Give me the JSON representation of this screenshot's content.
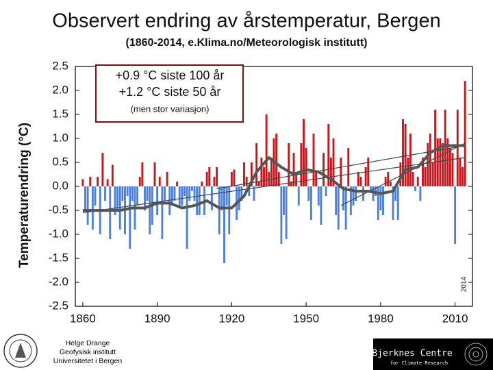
{
  "chart_data": {
    "type": "bar",
    "title": "Observert endring av årstemperatur, Bergen",
    "subtitle": "(1860-2014, e.Klima.no/Meteorologisk institutt)",
    "y_label": "Temperaturendring (°C)",
    "annotation": [
      "+0.9 °C siste 100 år",
      "+1.2 °C siste 50 år",
      "(men stor variasjon)"
    ],
    "end_label": "2014",
    "positive_color": "#c8161d",
    "negative_color": "#4d7fdc",
    "x": [
      1860,
      1861,
      1862,
      1863,
      1864,
      1865,
      1866,
      1867,
      1868,
      1869,
      1870,
      1871,
      1872,
      1873,
      1874,
      1875,
      1876,
      1877,
      1878,
      1879,
      1880,
      1881,
      1882,
      1883,
      1884,
      1885,
      1886,
      1887,
      1888,
      1889,
      1890,
      1891,
      1892,
      1893,
      1894,
      1895,
      1896,
      1897,
      1898,
      1899,
      1900,
      1901,
      1902,
      1903,
      1904,
      1905,
      1906,
      1907,
      1908,
      1909,
      1910,
      1911,
      1912,
      1913,
      1914,
      1915,
      1916,
      1917,
      1918,
      1919,
      1920,
      1921,
      1922,
      1923,
      1924,
      1925,
      1926,
      1927,
      1928,
      1929,
      1930,
      1931,
      1932,
      1933,
      1934,
      1935,
      1936,
      1937,
      1938,
      1939,
      1940,
      1941,
      1942,
      1943,
      1944,
      1945,
      1946,
      1947,
      1948,
      1949,
      1950,
      1951,
      1952,
      1953,
      1954,
      1955,
      1956,
      1957,
      1958,
      1959,
      1960,
      1961,
      1962,
      1963,
      1964,
      1965,
      1966,
      1967,
      1968,
      1969,
      1970,
      1971,
      1972,
      1973,
      1974,
      1975,
      1976,
      1977,
      1978,
      1979,
      1980,
      1981,
      1982,
      1983,
      1984,
      1985,
      1986,
      1987,
      1988,
      1989,
      1990,
      1991,
      1992,
      1993,
      1994,
      1995,
      1996,
      1997,
      1998,
      1999,
      2000,
      2001,
      2002,
      2003,
      2004,
      2005,
      2006,
      2007,
      2008,
      2009,
      2010,
      2011,
      2012,
      2013,
      2014
    ],
    "values": [
      0.15,
      -0.5,
      -0.8,
      0.2,
      -0.9,
      -0.4,
      0.2,
      -1.0,
      0.7,
      -0.3,
      0.15,
      -1.1,
      0.45,
      -0.6,
      -0.5,
      -0.9,
      -0.3,
      -1.0,
      -0.2,
      -1.3,
      -0.3,
      -0.9,
      -0.4,
      0.2,
      0.5,
      -0.5,
      -0.3,
      -1.0,
      -0.8,
      0.5,
      -0.6,
      0.2,
      -1.1,
      -0.3,
      0.3,
      -0.6,
      -0.4,
      -0.3,
      0.1,
      -0.4,
      -0.4,
      -0.2,
      -1.3,
      -0.3,
      -0.1,
      -0.3,
      -0.6,
      -0.6,
      0.1,
      -0.6,
      0.3,
      0.4,
      -0.5,
      0.2,
      0.4,
      -1.0,
      -0.5,
      -1.6,
      -0.4,
      -1.0,
      0.3,
      0.35,
      -0.7,
      -0.5,
      -0.3,
      0.5,
      0.2,
      -0.2,
      0.5,
      -0.3,
      0.9,
      0.1,
      0.6,
      0.4,
      1.5,
      0.3,
      0.6,
      1.0,
      1.1,
      0.3,
      -1.2,
      -0.6,
      -1.1,
      0.9,
      0.1,
      0.7,
      0.3,
      -0.4,
      0.9,
      1.4,
      0.8,
      -0.3,
      -0.7,
      1.1,
      0.3,
      -0.4,
      -0.8,
      0.7,
      -0.2,
      1.3,
      0.6,
      1.0,
      -0.6,
      -0.9,
      0.6,
      -0.5,
      -0.9,
      0.8,
      -0.6,
      -0.4,
      -0.3,
      0.3,
      0.2,
      -0.3,
      0.4,
      0.6,
      -0.1,
      -0.3,
      -0.2,
      -0.7,
      -0.5,
      -0.6,
      0.2,
      0.3,
      0.1,
      -0.7,
      -0.3,
      -0.7,
      0.5,
      1.4,
      1.3,
      0.6,
      1.1,
      0.3,
      -0.1,
      0.2,
      -0.3,
      0.6,
      0.4,
      0.9,
      1.1,
      0.5,
      1.6,
      1.0,
      1.0,
      0.9,
      1.6,
      1.0,
      0.8,
      0.7,
      -1.2,
      1.6,
      0.6,
      0.4,
      2.2
    ],
    "smoothed": {
      "color": "#555555",
      "x": [
        1860,
        1865,
        1870,
        1875,
        1880,
        1885,
        1890,
        1895,
        1900,
        1905,
        1910,
        1915,
        1920,
        1925,
        1930,
        1935,
        1940,
        1945,
        1950,
        1955,
        1960,
        1965,
        1970,
        1975,
        1980,
        1985,
        1990,
        1995,
        2000,
        2005,
        2010,
        2014
      ],
      "values": [
        -0.5,
        -0.5,
        -0.5,
        -0.5,
        -0.45,
        -0.45,
        -0.35,
        -0.35,
        -0.45,
        -0.4,
        -0.3,
        -0.45,
        -0.45,
        -0.2,
        0.3,
        0.6,
        0.4,
        0.25,
        0.35,
        0.3,
        0.15,
        -0.05,
        -0.1,
        -0.1,
        -0.15,
        -0.1,
        0.35,
        0.4,
        0.7,
        0.85,
        0.85,
        0.85
      ]
    },
    "trend_lines": [
      {
        "x": [
          1860,
          2014
        ],
        "values": [
          -0.55,
          0.6
        ]
      },
      {
        "x": [
          1914,
          2014
        ],
        "values": [
          -0.05,
          0.85
        ]
      },
      {
        "x": [
          1964,
          2014
        ],
        "values": [
          -0.4,
          0.9
        ]
      }
    ],
    "xlim": [
      1857,
      2017
    ],
    "xticks": [
      1860,
      1890,
      1920,
      1950,
      1980,
      2010
    ],
    "ylim": [
      -2.5,
      2.5
    ],
    "yticks": [
      2.5,
      {
        "value": 2,
        "label": "2.0"
      },
      1.5,
      {
        "value": 1,
        "label": "1.0"
      },
      0.5,
      {
        "value": 0,
        "label": "0.0"
      },
      -0.5,
      {
        "value": -1,
        "label": "-1.0"
      },
      -1.5,
      {
        "value": -2,
        "label": "-2.0"
      },
      -2.5
    ]
  },
  "footer": {
    "author": [
      "Helge Drange",
      "Geofysisk institutt",
      "Universitetet i Bergen"
    ],
    "logo": [
      "Bjerknes Centre",
      "for Climate Research"
    ]
  }
}
